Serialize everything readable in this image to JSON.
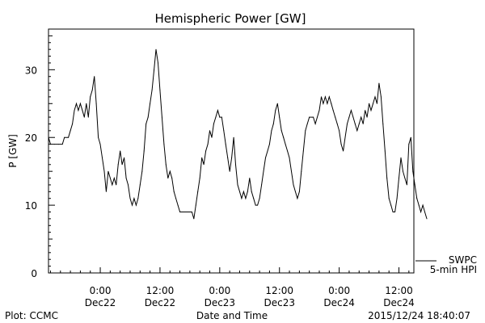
{
  "chart_data": {
    "type": "line",
    "title": "Hemispheric Power [GW]",
    "xlabel": "Date and Time",
    "ylabel": "P [GW]",
    "ylim": [
      0,
      36
    ],
    "xlim_hours": [
      -5.2,
      31.5
    ],
    "yticks": [
      0,
      10,
      20,
      30
    ],
    "xticks": [
      {
        "hour": 0,
        "time": "0:00",
        "date": "Dec22"
      },
      {
        "hour": 6,
        "time": "12:00",
        "date": "Dec22"
      },
      {
        "hour": 12,
        "time": "0:00",
        "date": "Dec23"
      },
      {
        "hour": 18,
        "time": "12:00",
        "date": "Dec23"
      },
      {
        "hour": 24,
        "time": "0:00",
        "date": "Dec24"
      },
      {
        "hour": 30,
        "time": "12:00",
        "date": "Dec24"
      }
    ],
    "series": [
      {
        "name": "5-min HPI",
        "values": [
          [
            -5.2,
            20
          ],
          [
            -5.0,
            19
          ],
          [
            -4.6,
            19
          ],
          [
            -4.2,
            19
          ],
          [
            -3.8,
            19
          ],
          [
            -3.6,
            20
          ],
          [
            -3.2,
            20
          ],
          [
            -3.0,
            21
          ],
          [
            -2.8,
            22
          ],
          [
            -2.6,
            24
          ],
          [
            -2.4,
            25
          ],
          [
            -2.2,
            24
          ],
          [
            -2.0,
            25
          ],
          [
            -1.8,
            24
          ],
          [
            -1.6,
            23
          ],
          [
            -1.4,
            25
          ],
          [
            -1.2,
            23
          ],
          [
            -1.0,
            26
          ],
          [
            -0.8,
            27
          ],
          [
            -0.6,
            29
          ],
          [
            -0.4,
            25
          ],
          [
            -0.2,
            20
          ],
          [
            0.0,
            19
          ],
          [
            0.2,
            17
          ],
          [
            0.4,
            15
          ],
          [
            0.6,
            12
          ],
          [
            0.8,
            15
          ],
          [
            1.0,
            14
          ],
          [
            1.2,
            13
          ],
          [
            1.4,
            14
          ],
          [
            1.6,
            13
          ],
          [
            1.8,
            16
          ],
          [
            2.0,
            18
          ],
          [
            2.2,
            16
          ],
          [
            2.4,
            17
          ],
          [
            2.6,
            14
          ],
          [
            2.8,
            13
          ],
          [
            3.0,
            11
          ],
          [
            3.2,
            10
          ],
          [
            3.4,
            11
          ],
          [
            3.6,
            10
          ],
          [
            3.8,
            11
          ],
          [
            4.0,
            13
          ],
          [
            4.2,
            15
          ],
          [
            4.4,
            18
          ],
          [
            4.6,
            22
          ],
          [
            4.8,
            23
          ],
          [
            5.0,
            25
          ],
          [
            5.2,
            27
          ],
          [
            5.4,
            30
          ],
          [
            5.6,
            33
          ],
          [
            5.8,
            31
          ],
          [
            6.0,
            27
          ],
          [
            6.2,
            23
          ],
          [
            6.4,
            19
          ],
          [
            6.6,
            16
          ],
          [
            6.8,
            14
          ],
          [
            7.0,
            15
          ],
          [
            7.2,
            14
          ],
          [
            7.4,
            12
          ],
          [
            7.6,
            11
          ],
          [
            7.8,
            10
          ],
          [
            8.0,
            9
          ],
          [
            8.4,
            9
          ],
          [
            8.8,
            9
          ],
          [
            9.2,
            9
          ],
          [
            9.4,
            8
          ],
          [
            9.6,
            10
          ],
          [
            9.8,
            12
          ],
          [
            10.0,
            14
          ],
          [
            10.2,
            17
          ],
          [
            10.4,
            16
          ],
          [
            10.6,
            18
          ],
          [
            10.8,
            19
          ],
          [
            11.0,
            21
          ],
          [
            11.2,
            20
          ],
          [
            11.4,
            22
          ],
          [
            11.6,
            23
          ],
          [
            11.8,
            24
          ],
          [
            12.0,
            23
          ],
          [
            12.2,
            23
          ],
          [
            12.4,
            21
          ],
          [
            12.6,
            19
          ],
          [
            12.8,
            17
          ],
          [
            13.0,
            15
          ],
          [
            13.2,
            17
          ],
          [
            13.4,
            20
          ],
          [
            13.6,
            16
          ],
          [
            13.8,
            13
          ],
          [
            14.0,
            12
          ],
          [
            14.2,
            11
          ],
          [
            14.4,
            12
          ],
          [
            14.6,
            11
          ],
          [
            14.8,
            12
          ],
          [
            15.0,
            14
          ],
          [
            15.2,
            12
          ],
          [
            15.4,
            11
          ],
          [
            15.6,
            10
          ],
          [
            15.8,
            10
          ],
          [
            16.0,
            11
          ],
          [
            16.2,
            13
          ],
          [
            16.4,
            15
          ],
          [
            16.6,
            17
          ],
          [
            16.8,
            18
          ],
          [
            17.0,
            19
          ],
          [
            17.2,
            21
          ],
          [
            17.4,
            22
          ],
          [
            17.6,
            24
          ],
          [
            17.8,
            25
          ],
          [
            18.0,
            23
          ],
          [
            18.2,
            21
          ],
          [
            18.4,
            20
          ],
          [
            18.6,
            19
          ],
          [
            18.8,
            18
          ],
          [
            19.0,
            17
          ],
          [
            19.2,
            15
          ],
          [
            19.4,
            13
          ],
          [
            19.6,
            12
          ],
          [
            19.8,
            11
          ],
          [
            20.0,
            12
          ],
          [
            20.2,
            15
          ],
          [
            20.4,
            18
          ],
          [
            20.6,
            21
          ],
          [
            20.8,
            22
          ],
          [
            21.0,
            23
          ],
          [
            21.4,
            23
          ],
          [
            21.6,
            22
          ],
          [
            21.8,
            23
          ],
          [
            22.0,
            24
          ],
          [
            22.2,
            26
          ],
          [
            22.4,
            25
          ],
          [
            22.6,
            26
          ],
          [
            22.8,
            25
          ],
          [
            23.0,
            26
          ],
          [
            23.2,
            25
          ],
          [
            23.4,
            24
          ],
          [
            23.6,
            23
          ],
          [
            23.8,
            22
          ],
          [
            24.0,
            21
          ],
          [
            24.2,
            19
          ],
          [
            24.4,
            18
          ],
          [
            24.6,
            20
          ],
          [
            24.8,
            22
          ],
          [
            25.0,
            23
          ],
          [
            25.2,
            24
          ],
          [
            25.4,
            23
          ],
          [
            25.6,
            22
          ],
          [
            25.8,
            21
          ],
          [
            26.0,
            22
          ],
          [
            26.2,
            23
          ],
          [
            26.4,
            22
          ],
          [
            26.6,
            24
          ],
          [
            26.8,
            23
          ],
          [
            27.0,
            25
          ],
          [
            27.2,
            24
          ],
          [
            27.4,
            25
          ],
          [
            27.6,
            26
          ],
          [
            27.8,
            25
          ],
          [
            28.0,
            28
          ],
          [
            28.2,
            26
          ],
          [
            28.4,
            22
          ],
          [
            28.6,
            18
          ],
          [
            28.8,
            14
          ],
          [
            29.0,
            11
          ],
          [
            29.2,
            10
          ],
          [
            29.4,
            9
          ],
          [
            29.6,
            9
          ],
          [
            29.8,
            11
          ],
          [
            30.0,
            14
          ],
          [
            30.2,
            17
          ],
          [
            30.4,
            15
          ],
          [
            30.6,
            14
          ],
          [
            30.8,
            13
          ],
          [
            31.0,
            19
          ],
          [
            31.2,
            20
          ],
          [
            31.4,
            15
          ],
          [
            31.6,
            13
          ],
          [
            31.8,
            11
          ],
          [
            32.0,
            10
          ],
          [
            32.2,
            9
          ],
          [
            32.4,
            10
          ],
          [
            32.6,
            9
          ],
          [
            32.8,
            8
          ]
        ]
      }
    ]
  },
  "legend": {
    "lines": [
      "SWPC",
      "5-min HPI"
    ]
  },
  "footer": {
    "plot_source": "Plot: CCMC",
    "timestamp": "2015/12/24 18:40:07"
  }
}
